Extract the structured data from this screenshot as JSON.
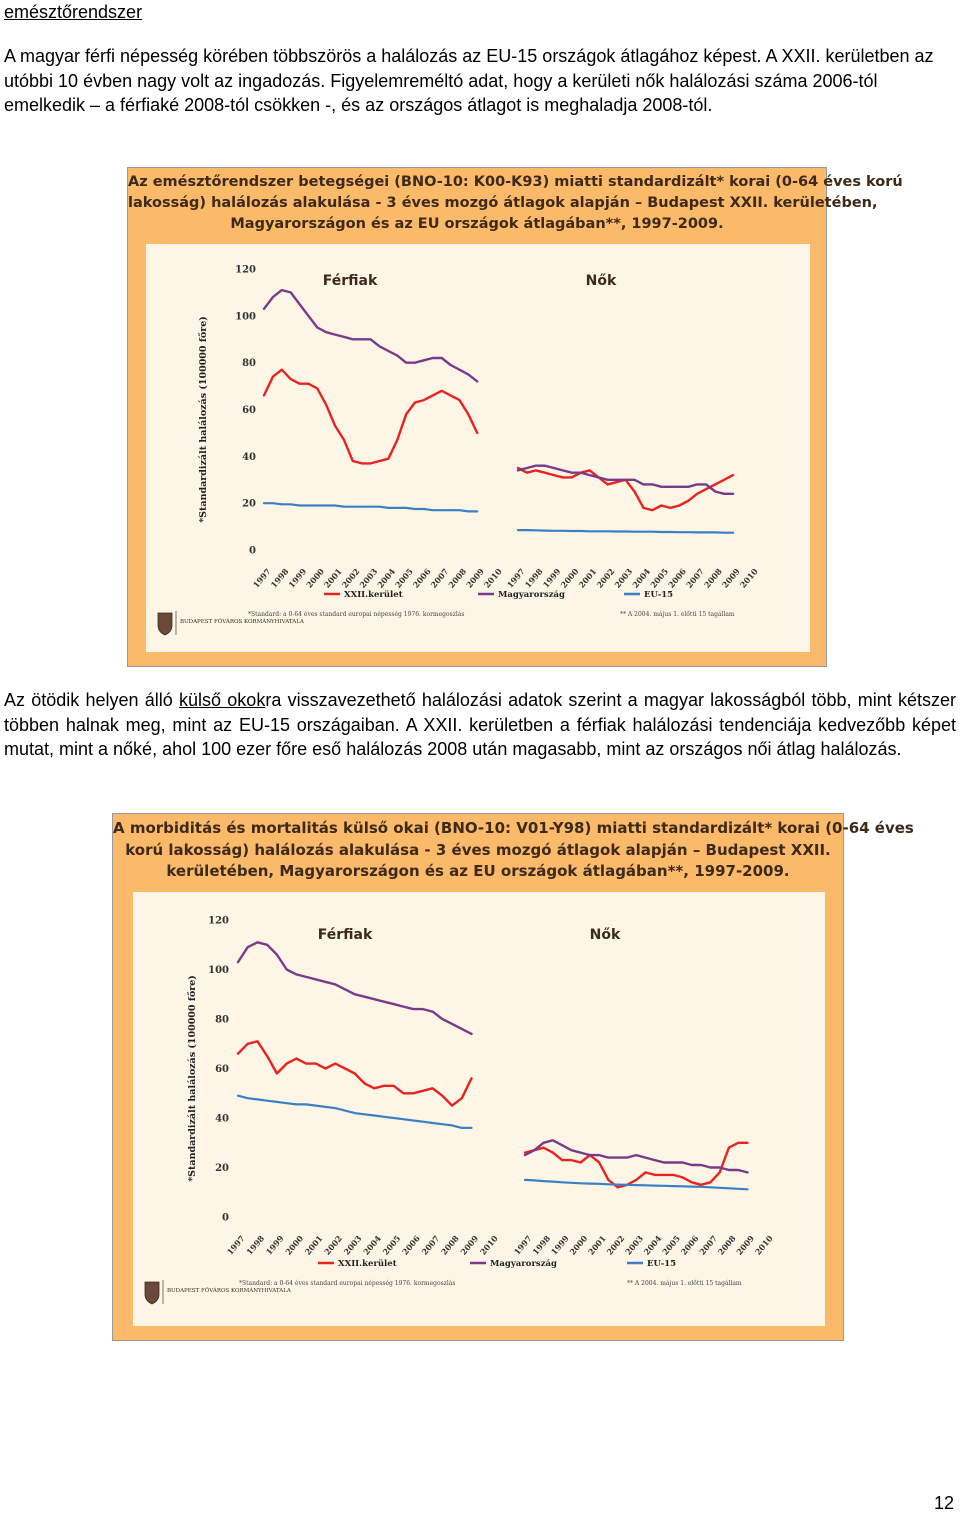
{
  "heading": "emésztőrendszer",
  "paragraph1": "A magyar férfi népesség körében többszörös a halálozás az EU-15 országok átlagához képest. A XXII. kerületben az utóbbi 10 évben nagy volt az ingadozás. Figyelemreméltó adat, hogy a kerületi nők halálozási száma 2006-tól emelkedik – a férfiaké 2008-tól csökken -, és az országos átlagot is meghaladja 2008-tól.",
  "paragraph2": {
    "before": "Az ötödik helyen álló ",
    "underlined": "külső okok",
    "after": "ra visszavezethető halálozási adatok szerint a magyar lakosságból több, mint kétszer többen halnak meg, mint az EU-15 országaiban. A XXII. kerületben a férfiak halálozási tendenciája kedvezőbb képet mutat, mint a nőké, ahol 100 ezer főre eső halálozás 2008 után magasabb, mint az országos női átlag halálozás."
  },
  "page_number": "12",
  "colors": {
    "xxii": "#e8231f",
    "hungary": "#7a3a8a",
    "eu15": "#3b7fc4",
    "frame": "#fbb96a",
    "plot_bg": "#fdf6e6"
  },
  "chart_data": [
    {
      "type": "line",
      "title_lines": [
        "Az emésztőrendszer betegségei (BNO-10: K00-K93) miatti standardizált* korai (0-64 éves korú",
        "lakosság) halálozás alakulása - 3 éves mozgó átlagok alapján – Budapest XXII. kerületében,",
        "Magyarországon és az EU országok átlagában**, 1997-2009."
      ],
      "ylabel": "*Standardizált halálozás (100000 főre)",
      "yticks": [
        "0",
        "20",
        "40",
        "60",
        "80",
        "100",
        "120"
      ],
      "ylim": [
        0,
        120
      ],
      "xticks": [
        "1997",
        "1998",
        "1999",
        "2000",
        "2001",
        "2002",
        "2003",
        "2004",
        "2005",
        "2006",
        "2007",
        "2008",
        "2009",
        "2010"
      ],
      "panels": [
        {
          "name": "Férfiak",
          "x": [
            1997.0,
            1997.5,
            1998.0,
            1998.5,
            1999.0,
            1999.5,
            2000.0,
            2000.5,
            2001.0,
            2001.5,
            2002.0,
            2002.5,
            2003.0,
            2003.5,
            2004.0,
            2004.5,
            2005.0,
            2005.5,
            2006.0,
            2006.5,
            2007.0,
            2007.5,
            2008.0,
            2008.5,
            2009.0
          ],
          "series": [
            {
              "name": "XXII.kerület",
              "values": [
                66,
                74,
                77,
                73,
                71,
                71,
                69,
                62,
                53,
                47,
                38,
                37,
                37,
                38,
                39,
                47,
                58,
                63,
                64,
                66,
                68,
                66,
                64,
                58,
                50
              ]
            },
            {
              "name": "Magyarország",
              "values": [
                103,
                108,
                111,
                110,
                105,
                100,
                95,
                93,
                92,
                91,
                90,
                90,
                90,
                87,
                85,
                83,
                80,
                80,
                81,
                82,
                82,
                79,
                77,
                75,
                72
              ]
            },
            {
              "name": "EU-15",
              "values": [
                20,
                20,
                19.5,
                19.5,
                19,
                19,
                19,
                19,
                19,
                18.5,
                18.5,
                18.5,
                18.5,
                18.5,
                18,
                18,
                18,
                17.5,
                17.5,
                17,
                17,
                17,
                17,
                16.5,
                16.5
              ]
            }
          ]
        },
        {
          "name": "Nők",
          "x": [
            1997.0,
            1997.5,
            1998.0,
            1998.5,
            1999.0,
            1999.5,
            2000.0,
            2000.5,
            2001.0,
            2001.5,
            2002.0,
            2002.5,
            2003.0,
            2003.5,
            2004.0,
            2004.5,
            2005.0,
            2005.5,
            2006.0,
            2006.5,
            2007.0,
            2007.5,
            2008.0,
            2008.5,
            2009.0
          ],
          "series": [
            {
              "name": "XXII.kerület",
              "values": [
                35,
                33,
                34,
                33,
                32,
                31,
                31,
                33,
                34,
                31,
                28,
                29,
                30,
                25,
                18,
                17,
                19,
                18,
                19,
                21,
                24,
                26,
                28,
                30,
                32
              ]
            },
            {
              "name": "Magyarország",
              "values": [
                34,
                35,
                36,
                36,
                35,
                34,
                33,
                33,
                32,
                31,
                30,
                30,
                30,
                30,
                28,
                28,
                27,
                27,
                27,
                27,
                28,
                28,
                25,
                24,
                24
              ]
            },
            {
              "name": "EU-15",
              "values": [
                8.5,
                8.5,
                8.4,
                8.3,
                8.2,
                8.2,
                8.1,
                8.1,
                8.0,
                8.0,
                8.0,
                7.9,
                7.9,
                7.8,
                7.8,
                7.8,
                7.7,
                7.7,
                7.6,
                7.6,
                7.5,
                7.5,
                7.5,
                7.4,
                7.4
              ]
            }
          ]
        }
      ],
      "legend": [
        "XXII.kerület",
        "Magyarország",
        "EU-15"
      ],
      "footnote_left": "*Standard: a 0-64 éves standard europai népesség 1976. kormegoszlás",
      "footnote_right": "** A 2004. május 1. előtti 15 tagállam",
      "logo_text": "BUDAPEST FŐVÁROS KORMÁNYHIVATALA"
    },
    {
      "type": "line",
      "title_lines": [
        "A morbiditás és mortalitás külső okai (BNO-10: V01-Y98) miatti standardizált* korai (0-64 éves",
        "korú lakosság) halálozás alakulása - 3 éves mozgó átlagok alapján – Budapest XXII.",
        "kerületében, Magyarországon és az EU országok átlagában**, 1997-2009."
      ],
      "ylabel": "*Standardizált halálozás (100000 főre)",
      "yticks": [
        "0",
        "20",
        "40",
        "60",
        "80",
        "100",
        "120"
      ],
      "ylim": [
        0,
        120
      ],
      "xticks": [
        "1997",
        "1998",
        "1999",
        "2000",
        "2001",
        "2002",
        "2003",
        "2004",
        "2005",
        "2006",
        "2007",
        "2008",
        "2009",
        "2010"
      ],
      "panels": [
        {
          "name": "Férfiak",
          "x": [
            1997.0,
            1997.5,
            1998.0,
            1998.5,
            1999.0,
            1999.5,
            2000.0,
            2000.5,
            2001.0,
            2001.5,
            2002.0,
            2002.5,
            2003.0,
            2003.5,
            2004.0,
            2004.5,
            2005.0,
            2005.5,
            2006.0,
            2006.5,
            2007.0,
            2007.5,
            2008.0,
            2008.5,
            2009.0
          ],
          "series": [
            {
              "name": "XXII.kerület",
              "values": [
                66,
                70,
                71,
                65,
                58,
                62,
                64,
                62,
                62,
                60,
                62,
                60,
                58,
                54,
                52,
                53,
                53,
                50,
                50,
                51,
                52,
                49,
                45,
                48,
                56
              ]
            },
            {
              "name": "Magyarország",
              "values": [
                103,
                109,
                111,
                110,
                106,
                100,
                98,
                97,
                96,
                95,
                94,
                92,
                90,
                89,
                88,
                87,
                86,
                85,
                84,
                84,
                83,
                80,
                78,
                76,
                74
              ]
            },
            {
              "name": "EU-15",
              "values": [
                49,
                48,
                47.5,
                47,
                46.5,
                46,
                45.5,
                45.5,
                45,
                44.5,
                44,
                43,
                42,
                41.5,
                41,
                40.5,
                40,
                39.5,
                39,
                38.5,
                38,
                37.5,
                37,
                36,
                36
              ]
            }
          ]
        },
        {
          "name": "Nők",
          "x": [
            1997.0,
            1997.5,
            1998.0,
            1998.5,
            1999.0,
            1999.5,
            2000.0,
            2000.5,
            2001.0,
            2001.5,
            2002.0,
            2002.5,
            2003.0,
            2003.5,
            2004.0,
            2004.5,
            2005.0,
            2005.5,
            2006.0,
            2006.5,
            2007.0,
            2007.5,
            2008.0,
            2008.5,
            2009.0
          ],
          "series": [
            {
              "name": "XXII.kerület",
              "values": [
                26,
                27,
                28,
                26,
                23,
                23,
                22,
                25,
                22,
                15,
                12,
                13,
                15,
                18,
                17,
                17,
                17,
                16,
                14,
                13,
                14,
                18,
                28,
                30,
                30
              ]
            },
            {
              "name": "Magyarország",
              "values": [
                25,
                27,
                30,
                31,
                29,
                27,
                26,
                25,
                25,
                24,
                24,
                24,
                25,
                24,
                23,
                22,
                22,
                22,
                21,
                21,
                20,
                20,
                19,
                19,
                18
              ]
            },
            {
              "name": "EU-15",
              "values": [
                15,
                14.8,
                14.5,
                14.3,
                14,
                13.8,
                13.6,
                13.5,
                13.4,
                13.2,
                13.1,
                13,
                12.9,
                12.8,
                12.7,
                12.6,
                12.5,
                12.4,
                12.3,
                12.2,
                12,
                11.8,
                11.6,
                11.4,
                11.2
              ]
            }
          ]
        }
      ],
      "legend": [
        "XXII.kerület",
        "Magyarország",
        "EU-15"
      ],
      "footnote_left": "*Standard: a 0-64 éves standard europai népesség 1976. kormegoszlás",
      "footnote_right": "** A 2004. május 1. előtti 15 tagállam",
      "logo_text": "BUDAPEST FŐVÁROS KORMÁNYHIVATALA"
    }
  ]
}
